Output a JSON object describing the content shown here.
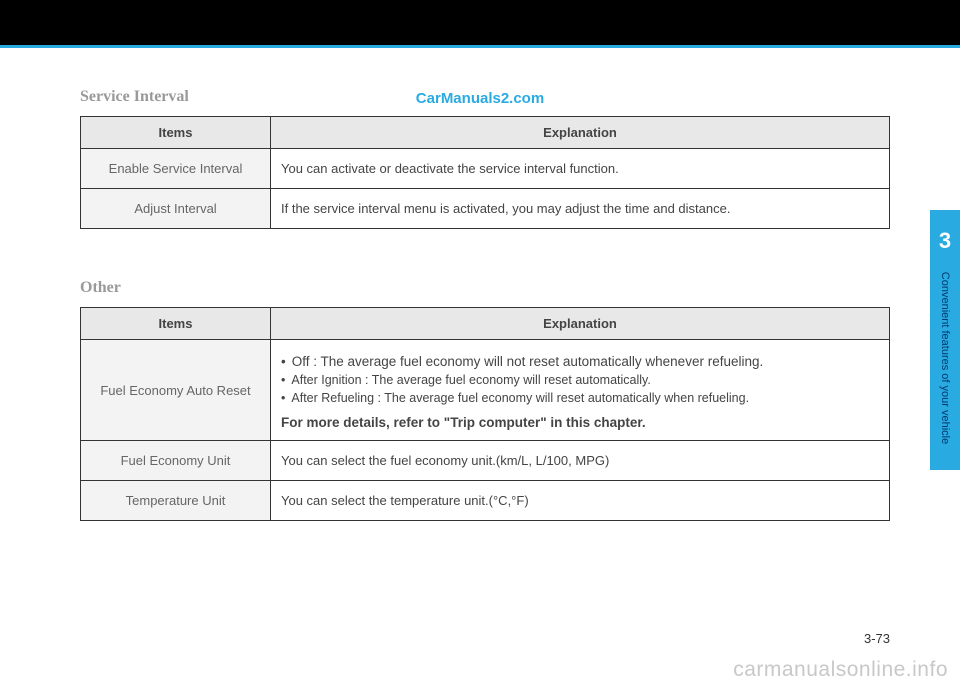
{
  "watermarks": {
    "top": "CarManuals2.com",
    "bottom": "carmanualsonline.info"
  },
  "sideTab": {
    "chapter": "3",
    "label": "Convenient features of your vehicle"
  },
  "pageNumber": "3-73",
  "section1": {
    "title": "Service Interval",
    "headers": {
      "items": "Items",
      "explanation": "Explanation"
    },
    "rows": [
      {
        "item": "Enable Service Interval",
        "explanation": "You can activate or deactivate the service interval function."
      },
      {
        "item": "Adjust Interval",
        "explanation": "If the service interval menu is activated, you may adjust the time and distance."
      }
    ]
  },
  "section2": {
    "title": "Other",
    "headers": {
      "items": "Items",
      "explanation": "Explanation"
    },
    "rows": {
      "fuelReset": {
        "item": "Fuel Economy Auto Reset",
        "bullets": {
          "off": "Off : The average fuel economy will not reset automatically whenever refueling.",
          "ignition": "After Ignition : The average fuel economy will reset automatically.",
          "refuel": "After Refueling : The average fuel economy will reset automatically when refueling."
        },
        "note": "For more details, refer to \"Trip computer\" in this chapter."
      },
      "fuelUnit": {
        "item": "Fuel Economy Unit",
        "explanation": "You can select the fuel economy unit.(km/L, L/100, MPG)"
      },
      "tempUnit": {
        "item": "Temperature Unit",
        "explanation": "You can select the temperature unit.(°C,°F)"
      }
    }
  },
  "colors": {
    "accent": "#29abe2",
    "headerBg": "#e8e8e8",
    "itemBg": "#f3f3f3",
    "border": "#333333",
    "titleGray": "#999999",
    "wmGray": "#c8c8c8"
  }
}
